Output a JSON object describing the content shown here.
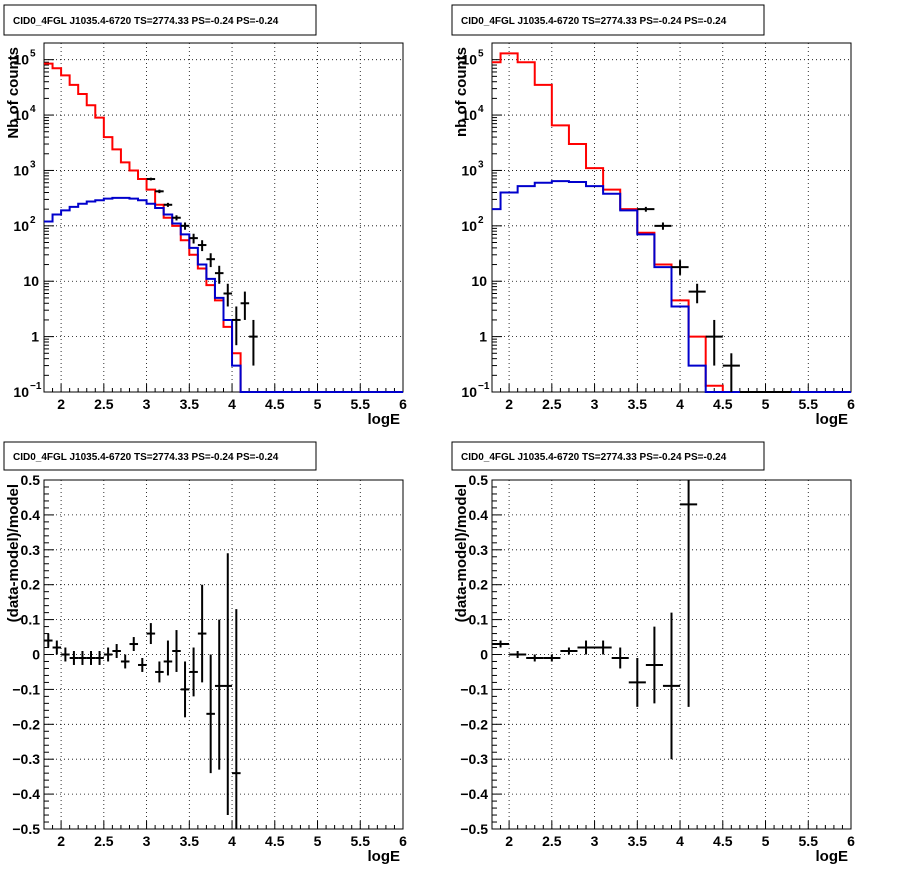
{
  "chart_data": [
    {
      "id": "p1",
      "type": "line",
      "title": "CID0_4FGL J1035.4-6720 TS=2774.33 PS=-0.24 PS=-0.24",
      "xlabel": "logE",
      "ylabel": "Nb of counts",
      "xlim": [
        1.8,
        6
      ],
      "ylim": [
        0.1,
        200000
      ],
      "yscale": "log",
      "grid": true,
      "xticks": [
        "2",
        "2.5",
        "3",
        "3.5",
        "4",
        "4.5",
        "5",
        "5.5",
        "6"
      ],
      "yticks": [
        {
          "value": 0.1,
          "base": "10",
          "exp": "−1"
        },
        {
          "value": 1,
          "label": "1"
        },
        {
          "value": 10,
          "label": "10"
        },
        {
          "value": 100,
          "base": "10",
          "exp": "2"
        },
        {
          "value": 1000,
          "base": "10",
          "exp": "3"
        },
        {
          "value": 10000,
          "base": "10",
          "exp": "4"
        },
        {
          "value": 100000,
          "base": "10",
          "exp": "5"
        }
      ],
      "series": [
        {
          "kind": "step",
          "color": "#ff0000",
          "edges": [
            1.8,
            1.9,
            2.0,
            2.1,
            2.2,
            2.3,
            2.4,
            2.5,
            2.6,
            2.7,
            2.8,
            2.9,
            3.0,
            3.1,
            3.2,
            3.3,
            3.4,
            3.5,
            3.6,
            3.7,
            3.8,
            3.9,
            4.0,
            4.1,
            4.2,
            4.3,
            4.4,
            4.5,
            4.6,
            4.7,
            4.8,
            4.9,
            5.0,
            5.1,
            5.2,
            5.3,
            5.4,
            5.5,
            5.6,
            5.7,
            5.8,
            5.9,
            6.0
          ],
          "values": [
            85000,
            70000,
            52000,
            35000,
            24000,
            15000,
            9000,
            4000,
            2400,
            1400,
            1000,
            700,
            450,
            240,
            140,
            100,
            55,
            30,
            17,
            8.5,
            4.5,
            1.5,
            0.5,
            0.1,
            0.1,
            0.1,
            0.1,
            0.1,
            0.1,
            0.1,
            0.1,
            0.1,
            0.1,
            0.1,
            0.1,
            0.1,
            0.1,
            0.1,
            0.1,
            0.1,
            0.1,
            0.1
          ]
        },
        {
          "kind": "step",
          "color": "#0000cc",
          "edges": [
            1.8,
            1.9,
            2.0,
            2.1,
            2.2,
            2.3,
            2.4,
            2.5,
            2.6,
            2.7,
            2.8,
            2.9,
            3.0,
            3.1,
            3.2,
            3.3,
            3.4,
            3.5,
            3.6,
            3.7,
            3.8,
            3.9,
            4.0,
            4.1,
            4.2,
            4.3,
            4.4,
            4.5,
            4.6,
            4.7,
            4.8,
            4.9,
            5.0,
            5.1,
            5.2,
            5.3,
            5.4,
            5.5,
            5.6,
            5.7,
            5.8,
            5.9,
            6.0
          ],
          "values": [
            120,
            160,
            190,
            220,
            250,
            275,
            290,
            310,
            320,
            320,
            310,
            290,
            250,
            210,
            160,
            110,
            70,
            40,
            20,
            11,
            5,
            2,
            0.3,
            0.1,
            0.1,
            0.1,
            0.1,
            0.1,
            0.1,
            0.1,
            0.1,
            0.1,
            0.1,
            0.1,
            0.1,
            0.1,
            0.1,
            0.1,
            0.1,
            0.1,
            0.1,
            0.1
          ]
        },
        {
          "kind": "errors",
          "color": "#000000",
          "xerr": 0.05,
          "x": [
            3.05,
            3.15,
            3.25,
            3.35,
            3.45,
            3.55,
            3.65,
            3.75,
            3.85,
            3.95,
            4.05,
            4.15,
            4.25
          ],
          "y": [
            700,
            420,
            240,
            140,
            100,
            60,
            45,
            25,
            14,
            6,
            2,
            4,
            1
          ],
          "ylo": [
            660,
            390,
            220,
            125,
            85,
            48,
            35,
            18,
            9,
            3.5,
            0.7,
            2,
            0.3
          ],
          "yhi": [
            740,
            450,
            260,
            155,
            115,
            72,
            55,
            32,
            19,
            9,
            3.5,
            6.5,
            2
          ]
        }
      ]
    },
    {
      "id": "p2",
      "type": "line",
      "title": "CID0_4FGL J1035.4-6720 TS=2774.33 PS=-0.24 PS=-0.24",
      "xlabel": "logE",
      "ylabel": "nb of counts",
      "xlim": [
        1.8,
        6
      ],
      "ylim": [
        0.1,
        200000
      ],
      "yscale": "log",
      "grid": true,
      "xticks": [
        "2",
        "2.5",
        "3",
        "3.5",
        "4",
        "4.5",
        "5",
        "5.5",
        "6"
      ],
      "yticks": [
        {
          "value": 0.1,
          "base": "10",
          "exp": "−1"
        },
        {
          "value": 1,
          "label": "1"
        },
        {
          "value": 10,
          "label": "10"
        },
        {
          "value": 100,
          "base": "10",
          "exp": "2"
        },
        {
          "value": 1000,
          "base": "10",
          "exp": "3"
        },
        {
          "value": 10000,
          "base": "10",
          "exp": "4"
        },
        {
          "value": 100000,
          "base": "10",
          "exp": "5"
        }
      ],
      "series": [
        {
          "kind": "step",
          "color": "#ff0000",
          "edges": [
            1.8,
            1.9,
            2.1,
            2.3,
            2.5,
            2.7,
            2.9,
            3.1,
            3.3,
            3.5,
            3.7,
            3.9,
            4.1,
            4.3,
            4.5,
            4.7,
            4.9,
            5.1,
            5.3,
            5.5,
            5.7,
            5.9,
            6.0
          ],
          "values": [
            90000,
            130000,
            90000,
            35000,
            6500,
            3000,
            1100,
            450,
            200,
            75,
            20,
            4.5,
            1,
            0.13,
            0.1,
            0.1,
            0.1,
            0.1,
            0.1,
            0.1,
            0.1,
            0.1
          ]
        },
        {
          "kind": "step",
          "color": "#0000cc",
          "edges": [
            1.8,
            1.9,
            2.1,
            2.3,
            2.5,
            2.7,
            2.9,
            3.1,
            3.3,
            3.5,
            3.7,
            3.9,
            4.1,
            4.3,
            4.5,
            4.7,
            4.9,
            5.1,
            5.3,
            5.5,
            5.7,
            5.9,
            6.0
          ],
          "values": [
            200,
            400,
            520,
            600,
            640,
            620,
            520,
            380,
            190,
            70,
            18,
            3.5,
            0.3,
            0.1,
            0.1,
            0.1,
            0.1,
            0.1,
            0.1,
            0.1,
            0.1,
            0.1
          ]
        },
        {
          "kind": "errors",
          "color": "#000000",
          "xerr": 0.1,
          "x": [
            3.6,
            3.8,
            4.0,
            4.2,
            4.4,
            4.6,
            4.8,
            5.0,
            5.2
          ],
          "y": [
            200,
            100,
            18,
            6.5,
            1,
            0.3,
            0.1,
            0.1,
            0.1
          ],
          "ylo": [
            180,
            85,
            13,
            4,
            0.3,
            0.1,
            0.1,
            0.1,
            0.1
          ],
          "yhi": [
            220,
            115,
            24,
            9,
            2,
            0.5,
            0.1,
            0.1,
            0.1
          ]
        }
      ]
    },
    {
      "id": "p3",
      "type": "scatter",
      "title": "CID0_4FGL J1035.4-6720 TS=2774.33 PS=-0.24 PS=-0.24",
      "xlabel": "logE",
      "ylabel": "(data-model)/model",
      "xlim": [
        1.8,
        6
      ],
      "ylim": [
        -0.5,
        0.5
      ],
      "grid": true,
      "xticks": [
        "2",
        "2.5",
        "3",
        "3.5",
        "4",
        "4.5",
        "5",
        "5.5",
        "6"
      ],
      "yticks": [
        "−0.5",
        "−0.4",
        "−0.3",
        "−0.2",
        "−0.1",
        "0",
        "0.1",
        "0.2",
        "0.3",
        "0.4",
        "0.5"
      ],
      "series": [
        {
          "kind": "errors",
          "color": "#000000",
          "xerr": 0.05,
          "x": [
            1.85,
            1.95,
            2.05,
            2.15,
            2.25,
            2.35,
            2.45,
            2.55,
            2.65,
            2.75,
            2.85,
            2.95,
            3.05,
            3.15,
            3.25,
            3.35,
            3.45,
            3.55,
            3.65,
            3.75,
            3.85,
            3.95,
            4.05
          ],
          "y": [
            0.04,
            0.02,
            0.0,
            -0.01,
            -0.01,
            -0.01,
            -0.01,
            0.0,
            0.01,
            -0.02,
            0.03,
            -0.03,
            0.06,
            -0.05,
            -0.02,
            0.01,
            -0.1,
            -0.05,
            0.06,
            -0.17,
            -0.09,
            -0.09,
            -0.34
          ],
          "ylo": [
            0.02,
            0.0,
            -0.02,
            -0.03,
            -0.03,
            -0.03,
            -0.03,
            -0.02,
            -0.01,
            -0.04,
            0.01,
            -0.05,
            0.03,
            -0.08,
            -0.06,
            -0.05,
            -0.18,
            -0.12,
            -0.08,
            -0.34,
            -0.33,
            -0.46,
            -0.55
          ],
          "yhi": [
            0.06,
            0.04,
            0.02,
            0.01,
            0.01,
            0.01,
            0.01,
            0.02,
            0.03,
            0.0,
            0.05,
            -0.01,
            0.09,
            -0.02,
            0.04,
            0.07,
            -0.02,
            0.02,
            0.2,
            0.0,
            0.1,
            0.29,
            0.13
          ]
        }
      ]
    },
    {
      "id": "p4",
      "type": "scatter",
      "title": "CID0_4FGL J1035.4-6720 TS=2774.33 PS=-0.24 PS=-0.24",
      "xlabel": "logE",
      "ylabel": "(data-model)/model",
      "xlim": [
        1.8,
        6
      ],
      "ylim": [
        -0.5,
        0.5
      ],
      "grid": true,
      "xticks": [
        "2",
        "2.5",
        "3",
        "3.5",
        "4",
        "4.5",
        "5",
        "5.5",
        "6"
      ],
      "yticks": [
        "−0.5",
        "−0.4",
        "−0.3",
        "−0.2",
        "−0.1",
        "0",
        "0.1",
        "0.2",
        "0.3",
        "0.4",
        "0.5"
      ],
      "series": [
        {
          "kind": "errors",
          "color": "#000000",
          "xerr": 0.1,
          "x": [
            1.9,
            2.1,
            2.3,
            2.5,
            2.7,
            2.9,
            3.1,
            3.3,
            3.5,
            3.7,
            3.9,
            4.1
          ],
          "y": [
            0.03,
            0.0,
            -0.01,
            -0.01,
            0.01,
            0.02,
            0.02,
            -0.01,
            -0.08,
            -0.03,
            -0.09,
            0.43
          ],
          "ylo": [
            0.02,
            -0.01,
            -0.02,
            -0.02,
            0.0,
            0.0,
            0.0,
            -0.04,
            -0.15,
            -0.14,
            -0.3,
            -0.15
          ],
          "yhi": [
            0.04,
            0.01,
            0.0,
            0.0,
            0.02,
            0.04,
            0.04,
            0.02,
            -0.01,
            0.08,
            0.12,
            0.5
          ]
        }
      ]
    }
  ]
}
